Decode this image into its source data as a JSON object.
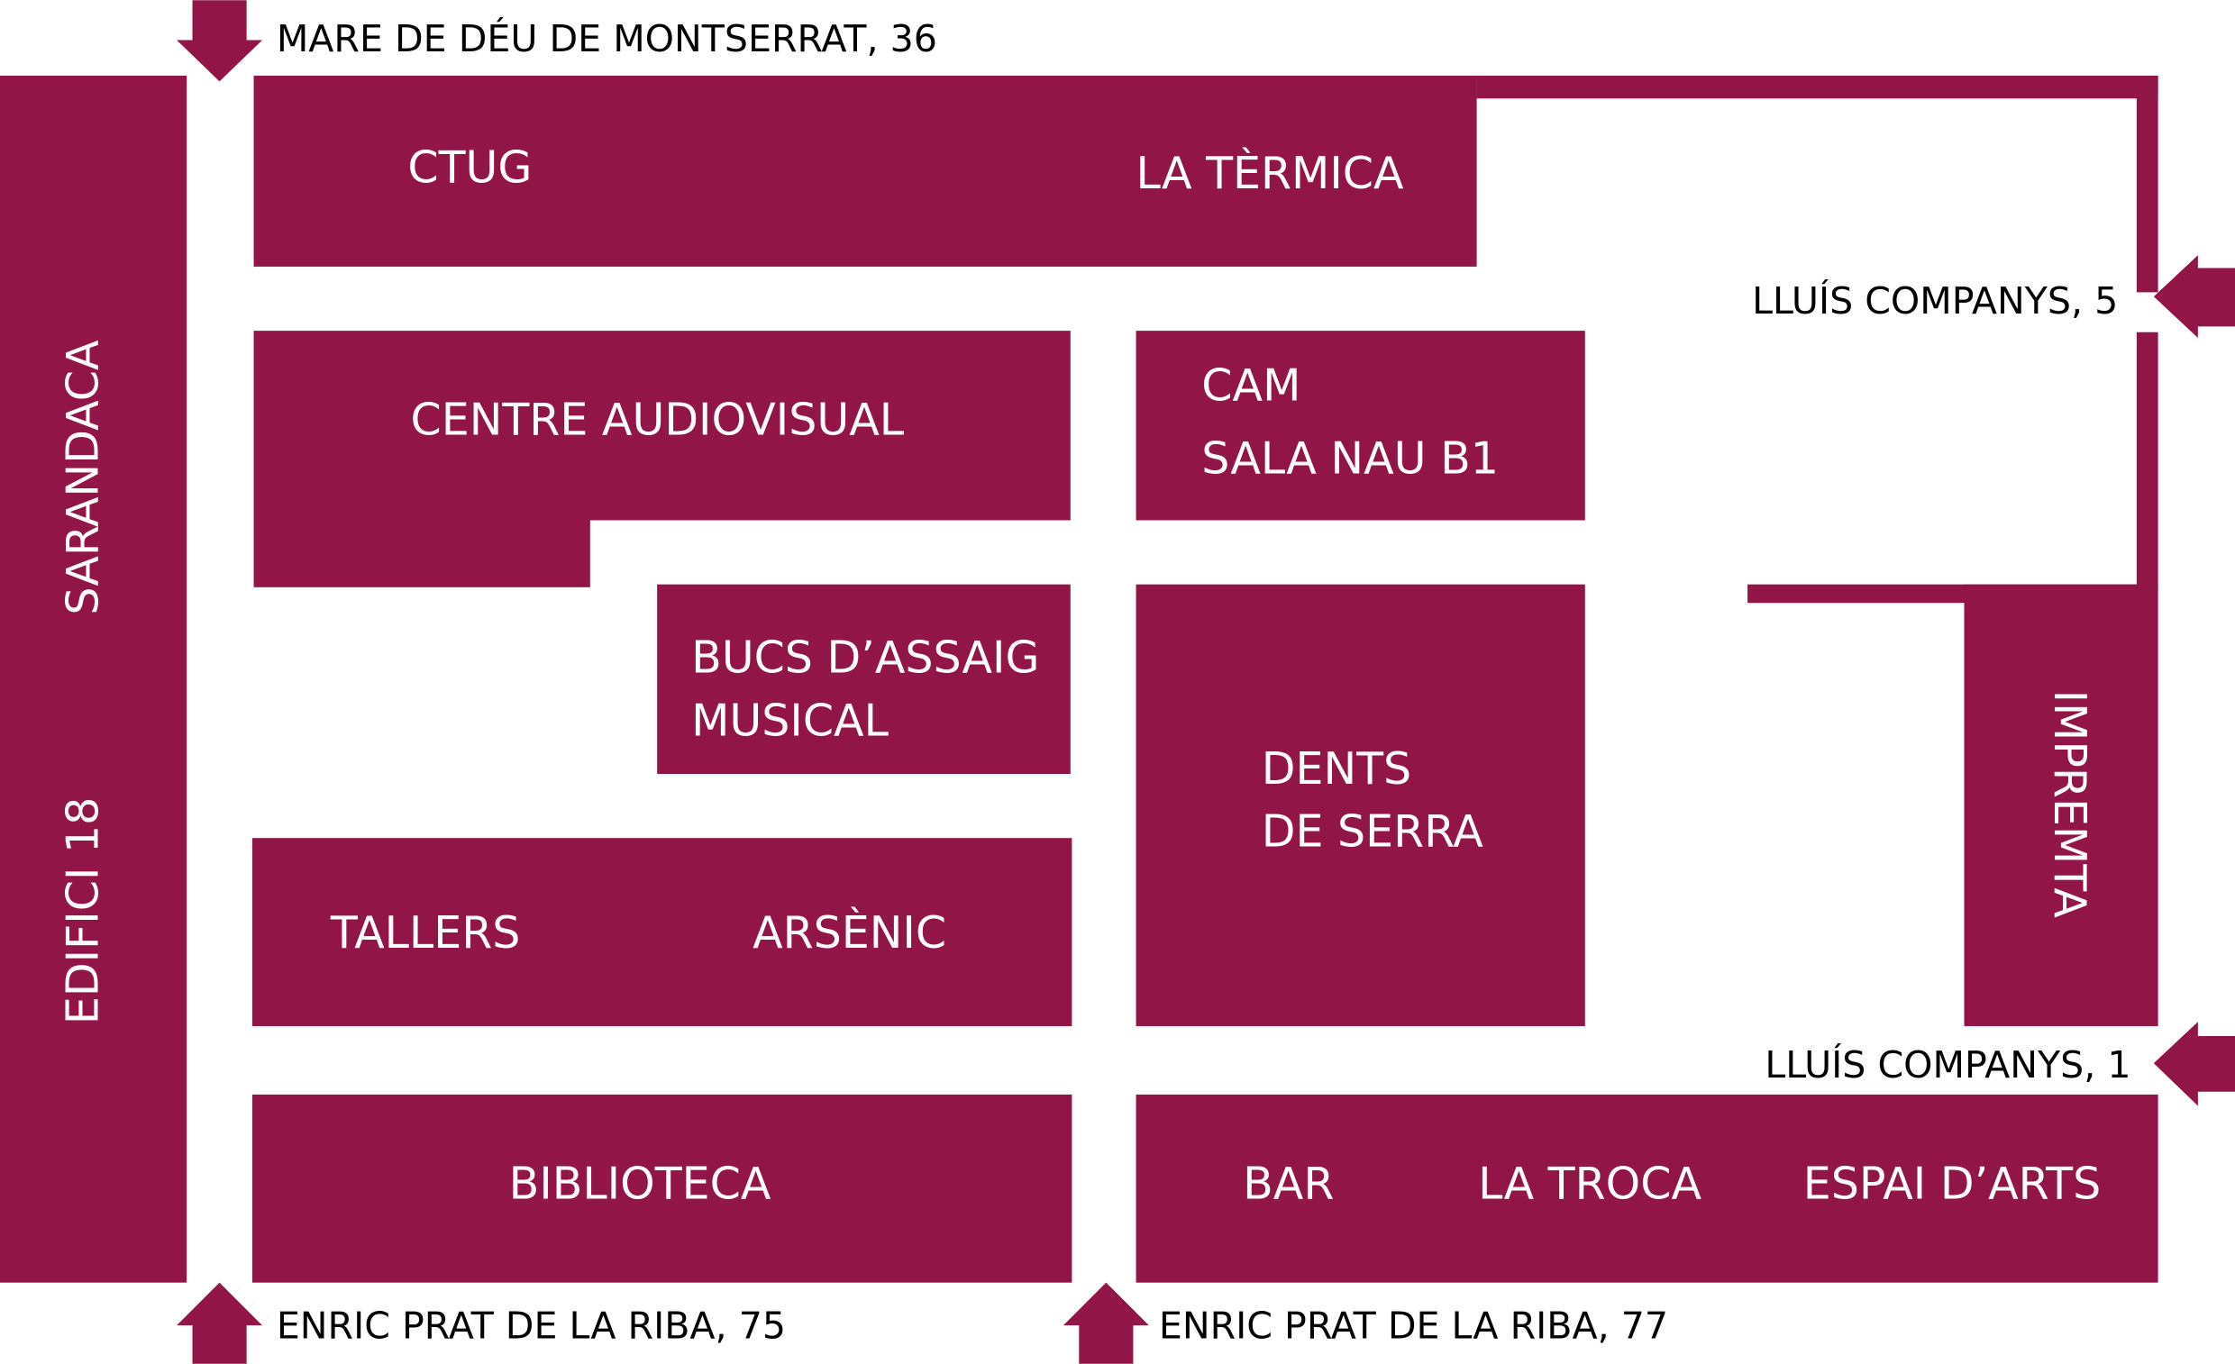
{
  "colors": {
    "building": "#921547",
    "background": "#ffffff",
    "street_text": "#000000",
    "building_text": "#ffffff"
  },
  "buildings": {
    "sarandaca": "SARANDACA",
    "edifici18": "EDIFICI 18",
    "ctug": "CTUG",
    "la_termica": "LA TÈRMICA",
    "centre_audiovisual": "CENTRE AUDIOVISUAL",
    "cam": "CAM",
    "sala_nau_b1": "SALA NAU B1",
    "bucs_line1": "BUCS D’ASSAIG",
    "bucs_line2": "MUSICAL",
    "dents_line1": "DENTS",
    "dents_line2": "DE SERRA",
    "impremta": "IMPREMTA",
    "tallers": "TALLERS",
    "arsenic": "ARSÈNIC",
    "biblioteca": "BIBLIOTECA",
    "bar": "BAR",
    "la_troca": "LA TROCA",
    "espai_darts": "ESPAI D’ARTS"
  },
  "entrances": {
    "mare_de_deu": "MARE DE DÉU DE MONTSERRAT, 36",
    "lluis_companys_5": "LLUÍS COMPANYS, 5",
    "lluis_companys_1": "LLUÍS COMPANYS, 1",
    "enric_prat_75": "ENRIC PRAT DE LA RIBA, 75",
    "enric_prat_77": "ENRIC PRAT DE LA RIBA, 77"
  },
  "icons": [
    "arrow-down-icon",
    "arrow-left-icon",
    "arrow-up-icon"
  ]
}
